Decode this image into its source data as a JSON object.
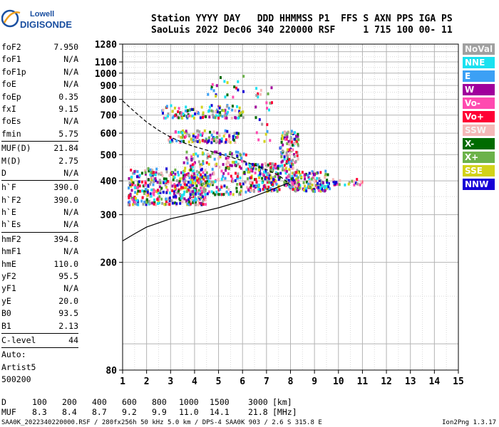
{
  "logo": {
    "line1": "Lowell",
    "line2": "DIGISONDE"
  },
  "header": {
    "line1": "Station YYYY DAY   DDD HHMMSS P1  FFS S AXN PPS IGA PS",
    "line2": "SaoLuis 2022 Dec06 340 220000 RSF     1 715 100 00- 11"
  },
  "params": [
    {
      "label": "foF2",
      "value": "7.950"
    },
    {
      "label": "foF1",
      "value": "N/A"
    },
    {
      "label": "foF1p",
      "value": "N/A"
    },
    {
      "label": "foE",
      "value": "N/A"
    },
    {
      "label": "foEp",
      "value": "0.35"
    },
    {
      "label": "fxI",
      "value": "9.15"
    },
    {
      "label": "foEs",
      "value": "N/A"
    },
    {
      "label": "fmin",
      "value": "5.75"
    },
    {
      "sep": true
    },
    {
      "label": "MUF(D)",
      "value": "21.84"
    },
    {
      "label": "M(D)",
      "value": "2.75"
    },
    {
      "label": "D",
      "value": "N/A"
    },
    {
      "sep": true
    },
    {
      "label": "h`F",
      "value": "390.0"
    },
    {
      "label": "h`F2",
      "value": "390.0"
    },
    {
      "label": "h`E",
      "value": "N/A"
    },
    {
      "label": "h`Es",
      "value": "N/A"
    },
    {
      "sep": true
    },
    {
      "label": "hmF2",
      "value": "394.8"
    },
    {
      "label": "hmF1",
      "value": "N/A"
    },
    {
      "label": "hmE",
      "value": "110.0"
    },
    {
      "label": "yF2",
      "value": "95.5"
    },
    {
      "label": "yF1",
      "value": "N/A"
    },
    {
      "label": "yE",
      "value": "20.0"
    },
    {
      "label": "B0",
      "value": "93.5"
    },
    {
      "label": "B1",
      "value": "2.13"
    },
    {
      "sep": true
    },
    {
      "label": "C-level",
      "value": "44"
    },
    {
      "sep": true
    }
  ],
  "autoscaling": {
    "line1": "Auto:",
    "line2": "Artist5",
    "line3": "500200"
  },
  "legend": [
    {
      "label": "NoVal",
      "color": "#a0a0a0"
    },
    {
      "label": "NNE",
      "color": "#19e1f0"
    },
    {
      "label": "E",
      "color": "#3ca0f5"
    },
    {
      "label": "W",
      "color": "#a0009c"
    },
    {
      "label": "Vo-",
      "color": "#ff4ab0"
    },
    {
      "label": "Vo+",
      "color": "#ff0035"
    },
    {
      "label": "SSW",
      "color": "#f5b8b8"
    },
    {
      "label": "X-",
      "color": "#006b00"
    },
    {
      "label": "X+",
      "color": "#6cb24a"
    },
    {
      "label": "SSE",
      "color": "#d2d21a"
    },
    {
      "label": "NNW",
      "color": "#1600d6"
    }
  ],
  "chart_data": {
    "type": "scatter",
    "x_ticks": [
      1,
      2,
      3,
      4,
      5,
      6,
      7,
      8,
      9,
      10,
      11,
      12,
      13,
      14,
      15
    ],
    "y_ticks": [
      80,
      200,
      300,
      400,
      500,
      600,
      700,
      800,
      900,
      1000,
      1100,
      1280
    ],
    "y_scale": "log",
    "xlim": [
      1,
      15
    ],
    "ylim": [
      80,
      1280
    ],
    "grid": true,
    "series": [
      {
        "name": "profile",
        "style": "solid",
        "x": [
          1.0,
          1.5,
          2.0,
          3.0,
          4.0,
          5.0,
          6.0,
          7.0,
          7.5,
          7.95
        ],
        "y": [
          240,
          255,
          270,
          290,
          303,
          318,
          338,
          365,
          380,
          394
        ]
      },
      {
        "name": "trace",
        "style": "dashed",
        "x": [
          1.0,
          1.5,
          2.0,
          2.5,
          3.0,
          3.5,
          4.0,
          5.0,
          6.0,
          7.0,
          7.5,
          7.8,
          8.0
        ],
        "y": [
          790,
          720,
          660,
          615,
          580,
          555,
          535,
          505,
          475,
          440,
          420,
          400,
          385
        ]
      }
    ],
    "echo_clusters": [
      {
        "x": [
          1.2,
          4.5
        ],
        "y": [
          330,
          450
        ],
        "density": 420
      },
      {
        "x": [
          3.5,
          6.2
        ],
        "y": [
          360,
          520
        ],
        "density": 220
      },
      {
        "x": [
          6.2,
          7.5
        ],
        "y": [
          370,
          470
        ],
        "density": 180
      },
      {
        "x": [
          7.5,
          8.3
        ],
        "y": [
          380,
          620
        ],
        "density": 160
      },
      {
        "x": [
          8.0,
          9.6
        ],
        "y": [
          370,
          440
        ],
        "density": 140
      },
      {
        "x": [
          9.6,
          11.0
        ],
        "y": [
          390,
          410
        ],
        "density": 25
      },
      {
        "x": [
          2.8,
          5.8
        ],
        "y": [
          560,
          620
        ],
        "density": 110
      },
      {
        "x": [
          2.6,
          6.0
        ],
        "y": [
          690,
          770
        ],
        "density": 120
      },
      {
        "x": [
          4.5,
          6.0
        ],
        "y": [
          820,
          1000
        ],
        "density": 20
      },
      {
        "x": [
          6.5,
          7.2
        ],
        "y": [
          560,
          900
        ],
        "density": 25
      }
    ]
  },
  "d_muf": {
    "d_label": "D",
    "d_values": [
      "100",
      "200",
      "400",
      "600",
      "800",
      "1000",
      "1500",
      "3000"
    ],
    "d_unit": "[km]",
    "muf_label": "MUF",
    "muf_values": [
      "8.3",
      "8.4",
      "8.7",
      "9.2",
      "9.9",
      "11.0",
      "14.1",
      "21.8"
    ],
    "muf_unit": "[MHz]"
  },
  "footer": "SAA0K_2022340220000.RSF / 280fx256h 50 kHz 5.0 km / DPS-4 SAA0K 903 / 2.6 S 315.8 E",
  "version": "Ion2Png 1.3.17"
}
